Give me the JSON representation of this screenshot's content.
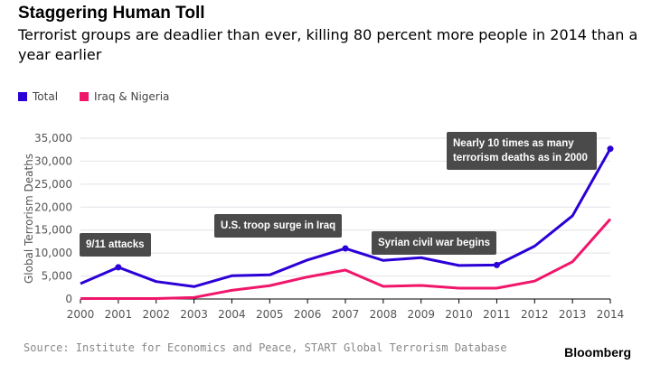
{
  "title": "Staggering Human Toll",
  "subtitle": "Terrorist groups are deadlier than ever, killing 80 percent more people in 2014 than a year earlier",
  "source": "Source: Institute for Economics and Peace, START Global Terrorism Database",
  "logo": "Bloomberg",
  "chart_data": {
    "type": "line",
    "ylabel": "Global Terrorism Deaths",
    "ylim": [
      0,
      35000
    ],
    "yticks": [
      "0",
      "5,000",
      "10,000",
      "15,000",
      "20,000",
      "25,000",
      "30,000",
      "35,000"
    ],
    "grid": true,
    "legend_placement": "top-left",
    "x": [
      2000,
      2001,
      2002,
      2003,
      2004,
      2005,
      2006,
      2007,
      2008,
      2009,
      2010,
      2011,
      2012,
      2013,
      2014
    ],
    "series": [
      {
        "name": "Total",
        "color": "#2b00d6",
        "values": [
          3350,
          6900,
          3800,
          2700,
          5060,
          5250,
          8500,
          11000,
          8400,
          9000,
          7300,
          7400,
          11500,
          18100,
          32700
        ]
      },
      {
        "name": "Iraq & Nigeria",
        "color": "#f0166a",
        "values": [
          100,
          100,
          100,
          330,
          1900,
          2900,
          4800,
          6300,
          2750,
          2950,
          2360,
          2360,
          3900,
          8100,
          17400
        ]
      }
    ],
    "annotations": [
      {
        "text": "9/11 attacks",
        "x": 2001
      },
      {
        "text": "U.S. troop surge in Iraq",
        "x": 2007
      },
      {
        "text": "Syrian civil war begins",
        "x": 2011
      },
      {
        "text": "Nearly 10 times as many terrorism deaths as in 2000",
        "x": 2014
      }
    ]
  }
}
